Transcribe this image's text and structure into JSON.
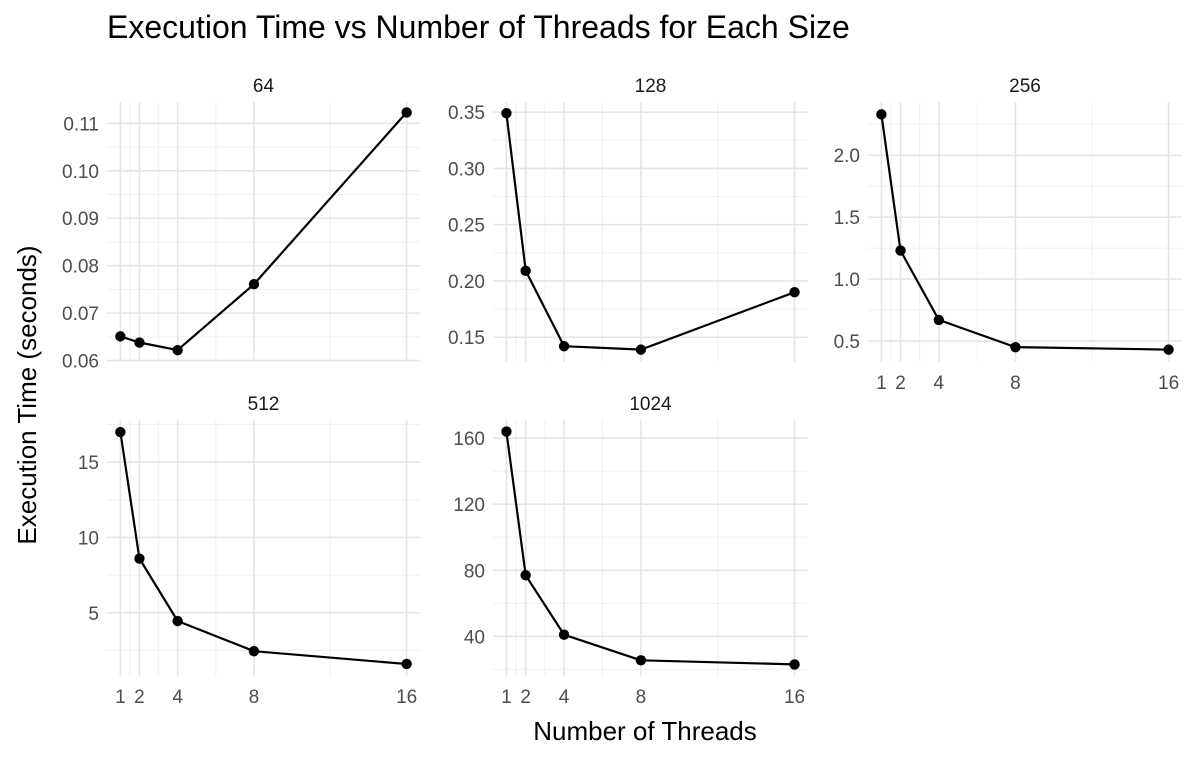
{
  "chart_data": {
    "type": "line",
    "title": "Execution Time vs Number of Threads for Each Size",
    "xlabel": "Number of Threads",
    "ylabel": "Execution Time (seconds)",
    "x": [
      1,
      2,
      4,
      8,
      16
    ],
    "x_ticks": [
      "1",
      "2",
      "4",
      "8",
      "16"
    ],
    "x_scale": "linear",
    "grid": true,
    "panels": [
      {
        "label": "64",
        "values": [
          0.0651,
          0.0638,
          0.0622,
          0.0761,
          0.1123
        ],
        "ylim": [
          0.0597,
          0.1145
        ],
        "yticks": [
          0.06,
          0.07,
          0.08,
          0.09,
          0.1,
          0.11
        ],
        "ytick_labels": [
          "0.06",
          "0.07",
          "0.08",
          "0.09",
          "0.10",
          "0.11"
        ]
      },
      {
        "label": "128",
        "values": [
          0.349,
          0.209,
          0.142,
          0.139,
          0.19
        ],
        "ylim": [
          0.128,
          0.359
        ],
        "yticks": [
          0.15,
          0.2,
          0.25,
          0.3,
          0.35
        ],
        "ytick_labels": [
          "0.15",
          "0.20",
          "0.25",
          "0.30",
          "0.35"
        ]
      },
      {
        "label": "256",
        "values": [
          2.33,
          1.23,
          0.67,
          0.45,
          0.43
        ],
        "ylim": [
          0.33,
          2.43
        ],
        "yticks": [
          0.5,
          1.0,
          1.5,
          2.0
        ],
        "ytick_labels": [
          "0.5",
          "1.0",
          "1.5",
          "2.0"
        ]
      },
      {
        "label": "512",
        "values": [
          17.0,
          8.6,
          4.45,
          2.45,
          1.6
        ],
        "ylim": [
          0.8,
          17.8
        ],
        "yticks": [
          5,
          10,
          15
        ],
        "ytick_labels": [
          "5",
          "10",
          "15"
        ]
      },
      {
        "label": "1024",
        "values": [
          164,
          77,
          41,
          25.5,
          23
        ],
        "ylim": [
          16,
          171
        ],
        "yticks": [
          40,
          80,
          120,
          160
        ],
        "ytick_labels": [
          "40",
          "80",
          "120",
          "160"
        ]
      }
    ]
  }
}
